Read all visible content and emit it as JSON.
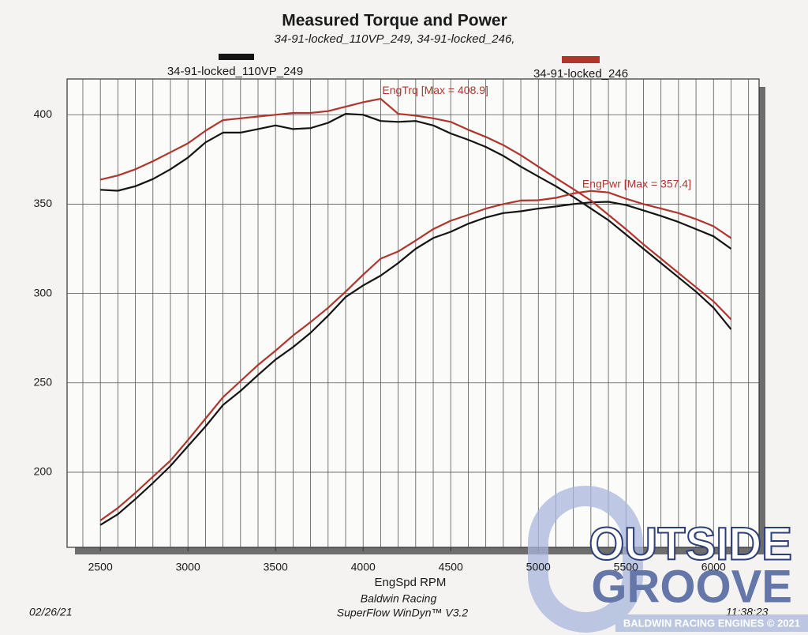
{
  "chart_data": {
    "type": "line",
    "title": "Measured Torque and Power",
    "subtitle": "34-91-locked_110VP_249, 34-91-locked_246,",
    "xlabel": "EngSpd RPM",
    "footer": [
      "Baldwin Racing",
      "SuperFlow WinDyn™ V3.2"
    ],
    "date": "02/26/21",
    "time": "11:38:23",
    "annotations": [
      "EngTrq [Max = 408.9]",
      "EngPwr [Max = 357.4]"
    ],
    "watermark": {
      "line1": "OUTSIDE",
      "line2": "GROOVE",
      "caption": "BALDWIN RACING ENGINES © 2021"
    },
    "xlim": [
      2310,
      6260
    ],
    "ylim": [
      158,
      420
    ],
    "xticks": [
      2500,
      3000,
      3500,
      4000,
      4500,
      5000,
      5500,
      6000
    ],
    "yticks": [
      200,
      250,
      300,
      350,
      400
    ],
    "xminorticks": [
      2400,
      2500,
      2600,
      2700,
      2800,
      2900,
      3000,
      3100,
      3200,
      3300,
      3400,
      3500,
      3600,
      3700,
      3800,
      3900,
      4000,
      4100,
      4200,
      4300,
      4400,
      4500,
      4600,
      4700,
      4800,
      4900,
      5000,
      5100,
      5200,
      5300,
      5400,
      5500,
      5600,
      5700,
      5800,
      5900,
      6000,
      6100,
      6200
    ],
    "grid": true,
    "x": [
      2500,
      2600,
      2700,
      2800,
      2900,
      3000,
      3100,
      3200,
      3300,
      3400,
      3500,
      3600,
      3700,
      3800,
      3900,
      4000,
      4100,
      4200,
      4300,
      4400,
      4500,
      4600,
      4700,
      4800,
      4900,
      5000,
      5100,
      5200,
      5300,
      5400,
      5500,
      5600,
      5700,
      5800,
      5900,
      6000,
      6100
    ],
    "series": [
      {
        "name": "34-91-locked_110VP_249",
        "color": "#141414",
        "torque": [
          358,
          357.5,
          360,
          364,
          369.5,
          376,
          384.5,
          390,
          390,
          392,
          394,
          392,
          392.5,
          395.5,
          400.5,
          400,
          396.5,
          396,
          396.5,
          394,
          389.5,
          386,
          382,
          377,
          371,
          365.5,
          360,
          354,
          347.5,
          341,
          333,
          325,
          317,
          309,
          301,
          292,
          280
        ],
        "power": [
          170.5,
          176.5,
          185,
          194,
          203.5,
          214.6,
          225.6,
          237.6,
          245.5,
          254.4,
          263,
          270,
          278,
          287.6,
          298,
          304.5,
          310,
          317,
          325,
          331,
          334.5,
          339,
          342.5,
          345,
          346,
          347.5,
          348.7,
          350,
          351,
          351.3,
          349.5,
          346.5,
          343.4,
          340,
          336,
          332,
          325
        ]
      },
      {
        "name": "34-91-locked_246",
        "color": "#b0352c",
        "torque": [
          363.7,
          366,
          369.5,
          374,
          379,
          384,
          391,
          397,
          398,
          399,
          400,
          401,
          401,
          402,
          404.5,
          407,
          408.9,
          400.5,
          399.5,
          398,
          396,
          391.6,
          387.6,
          383,
          377.4,
          371,
          364.6,
          358.4,
          352,
          344,
          336,
          327.5,
          319.5,
          311.5,
          303.5,
          295.6,
          285.5
        ],
        "power": [
          173,
          180,
          188.5,
          197.5,
          206.5,
          218,
          230,
          242,
          251,
          260,
          268,
          276.5,
          284,
          292,
          301,
          310.5,
          319.5,
          323.5,
          329.6,
          336,
          340.7,
          344,
          347.5,
          350,
          352,
          352.2,
          353.5,
          356,
          357.4,
          356.5,
          353,
          350,
          347.5,
          345,
          341.6,
          337.6,
          331
        ]
      }
    ]
  }
}
